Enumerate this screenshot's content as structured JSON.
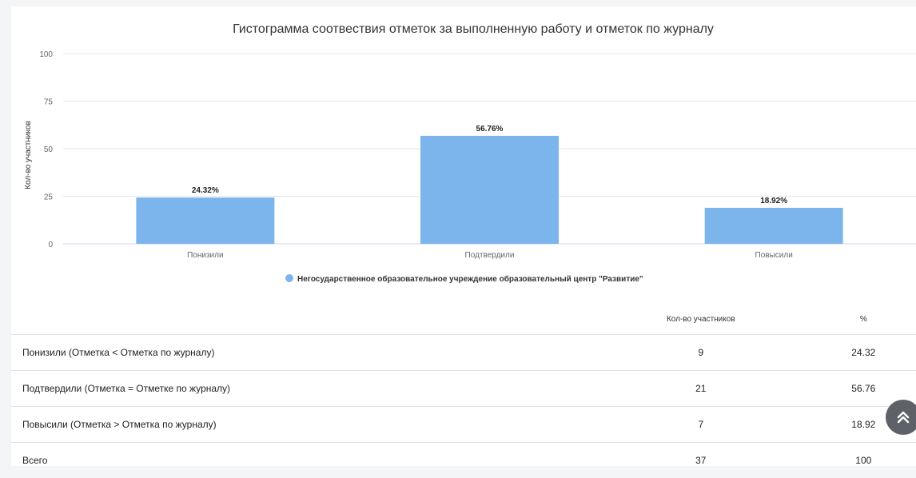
{
  "chart_data": {
    "type": "bar",
    "title": "Гистограмма соотвествия отметок за выполненную работу и отметок по журналу",
    "ylabel": "Кол-во участников",
    "xlabel": "",
    "ylim": [
      0,
      100
    ],
    "yticks": [
      "0",
      "25",
      "50",
      "75",
      "100"
    ],
    "categories": [
      "Понизили",
      "Подтвердили",
      "Повысили"
    ],
    "series": [
      {
        "name": "Негосударственное образовательное учреждение образовательный центр \"Развитие\"",
        "values": [
          24.32,
          56.76,
          18.92
        ],
        "labels": [
          "24.32%",
          "56.76%",
          "18.92%"
        ],
        "color": "#7cb5ec"
      }
    ],
    "grid": true,
    "legend": "bottom-center"
  },
  "table": {
    "headers": {
      "label": "",
      "count": "Кол-во участников",
      "percent": "%"
    },
    "rows": [
      {
        "label": "Понизили (Отметка < Отметка по журналу)",
        "count": "9",
        "percent": "24.32"
      },
      {
        "label": "Подтвердили (Отметка = Отметке по журналу)",
        "count": "21",
        "percent": "56.76"
      },
      {
        "label": "Повысили (Отметка > Отметка по журналу)",
        "count": "7",
        "percent": "18.92"
      },
      {
        "label": "Всего",
        "count": "37",
        "percent": "100"
      }
    ]
  },
  "scroll_top": {
    "icon": "double-chevron-up-icon"
  }
}
